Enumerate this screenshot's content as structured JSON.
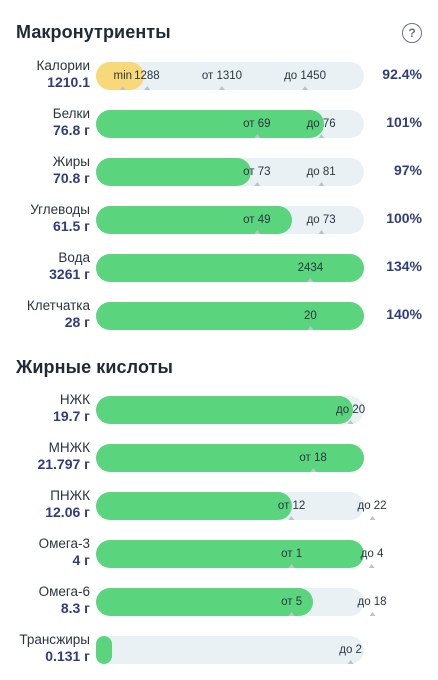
{
  "macro": {
    "title": "Макронутриенты",
    "rows": [
      {
        "name": "Калории",
        "amount": "1210.1",
        "fill": 0.18,
        "color": "yellow",
        "pct": "92.4%",
        "ticks": [
          {
            "text": "min",
            "pos": 0.1
          },
          {
            "text": "1288",
            "pos": 0.19
          },
          {
            "text": "от 1310",
            "pos": 0.47
          },
          {
            "text": "до 1450",
            "pos": 0.78
          }
        ]
      },
      {
        "name": "Белки",
        "amount": "76.8 г",
        "fill": 0.85,
        "color": "green",
        "pct": "101%",
        "ticks": [
          {
            "text": "от 69",
            "pos": 0.6
          },
          {
            "text": "до 76",
            "pos": 0.84
          }
        ]
      },
      {
        "name": "Жиры",
        "amount": "70.8 г",
        "fill": 0.58,
        "color": "green",
        "pct": "97%",
        "ticks": [
          {
            "text": "от 73",
            "pos": 0.6
          },
          {
            "text": "до 81",
            "pos": 0.84
          }
        ]
      },
      {
        "name": "Углеводы",
        "amount": "61.5 г",
        "fill": 0.73,
        "color": "green",
        "pct": "100%",
        "ticks": [
          {
            "text": "от 49",
            "pos": 0.6
          },
          {
            "text": "до 73",
            "pos": 0.84
          }
        ]
      },
      {
        "name": "Вода",
        "amount": "3261 г",
        "fill": 1.0,
        "color": "green",
        "pct": "134%",
        "ticks": [
          {
            "text": "2434",
            "pos": 0.8
          }
        ]
      },
      {
        "name": "Клетчатка",
        "amount": "28 г",
        "fill": 1.0,
        "color": "green",
        "pct": "140%",
        "ticks": [
          {
            "text": "20",
            "pos": 0.8
          }
        ]
      }
    ]
  },
  "fatty": {
    "title": "Жирные кислоты",
    "rows": [
      {
        "name": "НЖК",
        "amount": "19.7 г",
        "fill": 0.96,
        "color": "green",
        "ticks": [
          {
            "text": "до 20",
            "pos": 0.95
          }
        ]
      },
      {
        "name": "МНЖК",
        "amount": "21.797 г",
        "fill": 1.0,
        "color": "green",
        "ticks": [
          {
            "text": "от 18",
            "pos": 0.81
          }
        ]
      },
      {
        "name": "ПНЖК",
        "amount": "12.06 г",
        "fill": 0.73,
        "color": "green",
        "ticks": [
          {
            "text": "от 12",
            "pos": 0.73
          },
          {
            "text": "до 22",
            "pos": 1.03
          }
        ]
      },
      {
        "name": "Омега-3",
        "amount": "4 г",
        "fill": 1.0,
        "color": "green",
        "ticks": [
          {
            "text": "от 1",
            "pos": 0.73
          },
          {
            "text": "до 4",
            "pos": 1.03
          }
        ]
      },
      {
        "name": "Омега-6",
        "amount": "8.3 г",
        "fill": 0.81,
        "color": "green",
        "ticks": [
          {
            "text": "от 5",
            "pos": 0.73
          },
          {
            "text": "до 18",
            "pos": 1.03
          }
        ]
      },
      {
        "name": "Трансжиры",
        "amount": "0.131 г",
        "fill": 0.06,
        "color": "green",
        "ticks": [
          {
            "text": "до 2",
            "pos": 0.95
          }
        ]
      }
    ]
  },
  "help_icon": "question-circle-icon",
  "colors": {
    "green": "#5bd57d",
    "yellow": "#f8d97a",
    "track": "#e9f1f5",
    "accent": "#2e3d80"
  }
}
